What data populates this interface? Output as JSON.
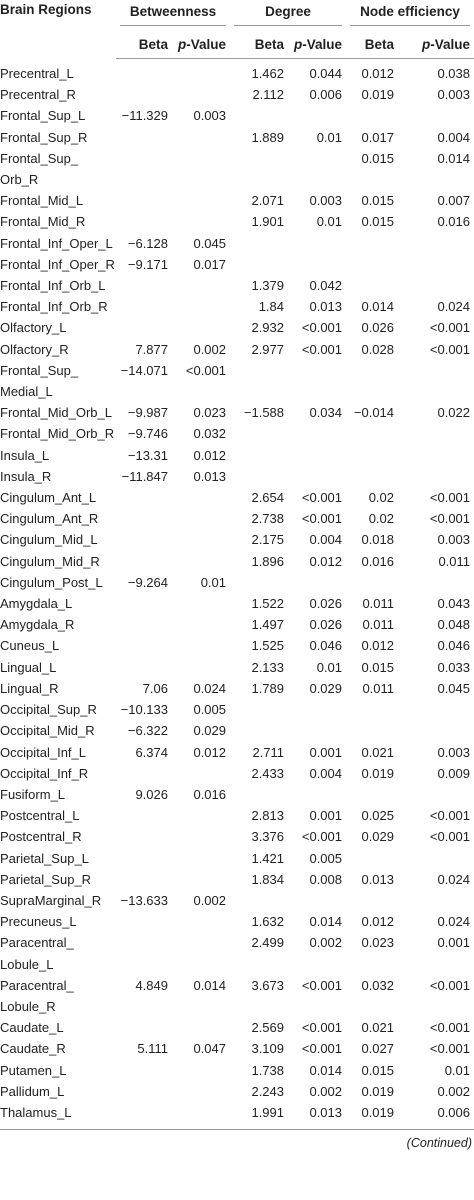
{
  "table": {
    "group_headers": [
      "Brain Regions",
      "Betweenness",
      "Degree",
      "Node efficiency"
    ],
    "sub_headers": [
      "Beta",
      "p-Value",
      "Beta",
      "p-Value",
      "Beta",
      "p-Value"
    ],
    "rows": [
      [
        "Precentral_L",
        null,
        null,
        "1.462",
        "0.044",
        "0.012",
        "0.038"
      ],
      [
        "Precentral_R",
        null,
        null,
        "2.112",
        "0.006",
        "0.019",
        "0.003"
      ],
      [
        "Frontal_Sup_L",
        "−11.329",
        "0.003",
        null,
        null,
        null,
        null
      ],
      [
        "Frontal_Sup_R",
        null,
        null,
        "1.889",
        "0.01",
        "0.017",
        "0.004"
      ],
      [
        "Frontal_Sup_\nOrb_R",
        null,
        null,
        null,
        null,
        "0.015",
        "0.014"
      ],
      [
        "Frontal_Mid_L",
        null,
        null,
        "2.071",
        "0.003",
        "0.015",
        "0.007"
      ],
      [
        "Frontal_Mid_R",
        null,
        null,
        "1.901",
        "0.01",
        "0.015",
        "0.016"
      ],
      [
        "Frontal_Inf_Oper_L",
        "−6.128",
        "0.045",
        null,
        null,
        null,
        null
      ],
      [
        "Frontal_Inf_Oper_R",
        "−9.171",
        "0.017",
        null,
        null,
        null,
        null
      ],
      [
        "Frontal_Inf_Orb_L",
        null,
        null,
        "1.379",
        "0.042",
        null,
        null
      ],
      [
        "Frontal_Inf_Orb_R",
        null,
        null,
        "1.84",
        "0.013",
        "0.014",
        "0.024"
      ],
      [
        "Olfactory_L",
        null,
        null,
        "2.932",
        "<0.001",
        "0.026",
        "<0.001"
      ],
      [
        "Olfactory_R",
        "7.877",
        "0.002",
        "2.977",
        "<0.001",
        "0.028",
        "<0.001"
      ],
      [
        "Frontal_Sup_\nMedial_L",
        "−14.071",
        "<0.001",
        null,
        null,
        null,
        null
      ],
      [
        "Frontal_Mid_Orb_L",
        "−9.987",
        "0.023",
        "−1.588",
        "0.034",
        "−0.014",
        "0.022"
      ],
      [
        "Frontal_Mid_Orb_R",
        "−9.746",
        "0.032",
        null,
        null,
        null,
        null
      ],
      [
        "Insula_L",
        "−13.31",
        "0.012",
        null,
        null,
        null,
        null
      ],
      [
        "Insula_R",
        "−11.847",
        "0.013",
        null,
        null,
        null,
        null
      ],
      [
        "Cingulum_Ant_L",
        null,
        null,
        "2.654",
        "<0.001",
        "0.02",
        "<0.001"
      ],
      [
        "Cingulum_Ant_R",
        null,
        null,
        "2.738",
        "<0.001",
        "0.02",
        "<0.001"
      ],
      [
        "Cingulum_Mid_L",
        null,
        null,
        "2.175",
        "0.004",
        "0.018",
        "0.003"
      ],
      [
        "Cingulum_Mid_R",
        null,
        null,
        "1.896",
        "0.012",
        "0.016",
        "0.011"
      ],
      [
        "Cingulum_Post_L",
        "−9.264",
        "0.01",
        null,
        null,
        null,
        null
      ],
      [
        "Amygdala_L",
        null,
        null,
        "1.522",
        "0.026",
        "0.011",
        "0.043"
      ],
      [
        "Amygdala_R",
        null,
        null,
        "1.497",
        "0.026",
        "0.011",
        "0.048"
      ],
      [
        "Cuneus_L",
        null,
        null,
        "1.525",
        "0.046",
        "0.012",
        "0.046"
      ],
      [
        "Lingual_L",
        null,
        null,
        "2.133",
        "0.01",
        "0.015",
        "0.033"
      ],
      [
        "Lingual_R",
        "7.06",
        "0.024",
        "1.789",
        "0.029",
        "0.011",
        "0.045"
      ],
      [
        "Occipital_Sup_R",
        "−10.133",
        "0.005",
        null,
        null,
        null,
        null
      ],
      [
        "Occipital_Mid_R",
        "−6.322",
        "0.029",
        null,
        null,
        null,
        null
      ],
      [
        "Occipital_Inf_L",
        "6.374",
        "0.012",
        "2.711",
        "0.001",
        "0.021",
        "0.003"
      ],
      [
        "Occipital_Inf_R",
        null,
        null,
        "2.433",
        "0.004",
        "0.019",
        "0.009"
      ],
      [
        "Fusiform_L",
        "9.026",
        "0.016",
        null,
        null,
        null,
        null
      ],
      [
        "Postcentral_L",
        null,
        null,
        "2.813",
        "0.001",
        "0.025",
        "<0.001"
      ],
      [
        "Postcentral_R",
        null,
        null,
        "3.376",
        "<0.001",
        "0.029",
        "<0.001"
      ],
      [
        "Parietal_Sup_L",
        null,
        null,
        "1.421",
        "0.005",
        null,
        null
      ],
      [
        "Parietal_Sup_R",
        null,
        null,
        "1.834",
        "0.008",
        "0.013",
        "0.024"
      ],
      [
        "SupraMarginal_R",
        "−13.633",
        "0.002",
        null,
        null,
        null,
        null
      ],
      [
        "Precuneus_L",
        null,
        null,
        "1.632",
        "0.014",
        "0.012",
        "0.024"
      ],
      [
        "Paracentral_\nLobule_L",
        null,
        null,
        "2.499",
        "0.002",
        "0.023",
        "0.001"
      ],
      [
        "Paracentral_\nLobule_R",
        "4.849",
        "0.014",
        "3.673",
        "<0.001",
        "0.032",
        "<0.001"
      ],
      [
        "Caudate_L",
        null,
        null,
        "2.569",
        "<0.001",
        "0.021",
        "<0.001"
      ],
      [
        "Caudate_R",
        "5.111",
        "0.047",
        "3.109",
        "<0.001",
        "0.027",
        "<0.001"
      ],
      [
        "Putamen_L",
        null,
        null,
        "1.738",
        "0.014",
        "0.015",
        "0.01"
      ],
      [
        "Pallidum_L",
        null,
        null,
        "2.243",
        "0.002",
        "0.019",
        "0.002"
      ],
      [
        "Thalamus_L",
        null,
        null,
        "1.991",
        "0.013",
        "0.019",
        "0.006"
      ]
    ],
    "footer": "(Continued)"
  }
}
